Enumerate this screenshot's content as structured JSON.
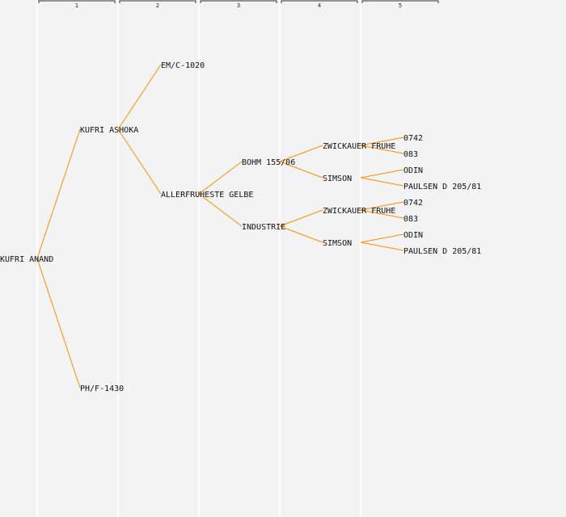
{
  "colors": {
    "background": "#f3f3f3",
    "edge": "#ff8c00",
    "text": "#111111",
    "column_line": "#ffffff"
  },
  "generations": [
    "1",
    "2",
    "3",
    "4",
    "5"
  ],
  "tree": {
    "label": "KUFRI ANAND",
    "children": [
      {
        "label": "KUFRI ASHOKA",
        "children": [
          {
            "label": "EM/C-1020"
          },
          {
            "label": "ALLERFRUHESTE GELBE",
            "children": [
              {
                "label": "BOHM 155/06",
                "children": [
                  {
                    "label": "ZWICKAUER FRUHE",
                    "children": [
                      {
                        "label": "0742"
                      },
                      {
                        "label": "083"
                      }
                    ]
                  },
                  {
                    "label": "SIMSON",
                    "children": [
                      {
                        "label": "ODIN"
                      },
                      {
                        "label": "PAULSEN D 205/81"
                      }
                    ]
                  }
                ]
              },
              {
                "label": "INDUSTRIE",
                "children": [
                  {
                    "label": "ZWICKAUER FRUHE",
                    "children": [
                      {
                        "label": "0742"
                      },
                      {
                        "label": "083"
                      }
                    ]
                  },
                  {
                    "label": "SIMSON",
                    "children": [
                      {
                        "label": "ODIN"
                      },
                      {
                        "label": "PAULSEN D 205/81"
                      }
                    ]
                  }
                ]
              }
            ]
          }
        ]
      },
      {
        "label": "PH/F-1430"
      }
    ]
  }
}
